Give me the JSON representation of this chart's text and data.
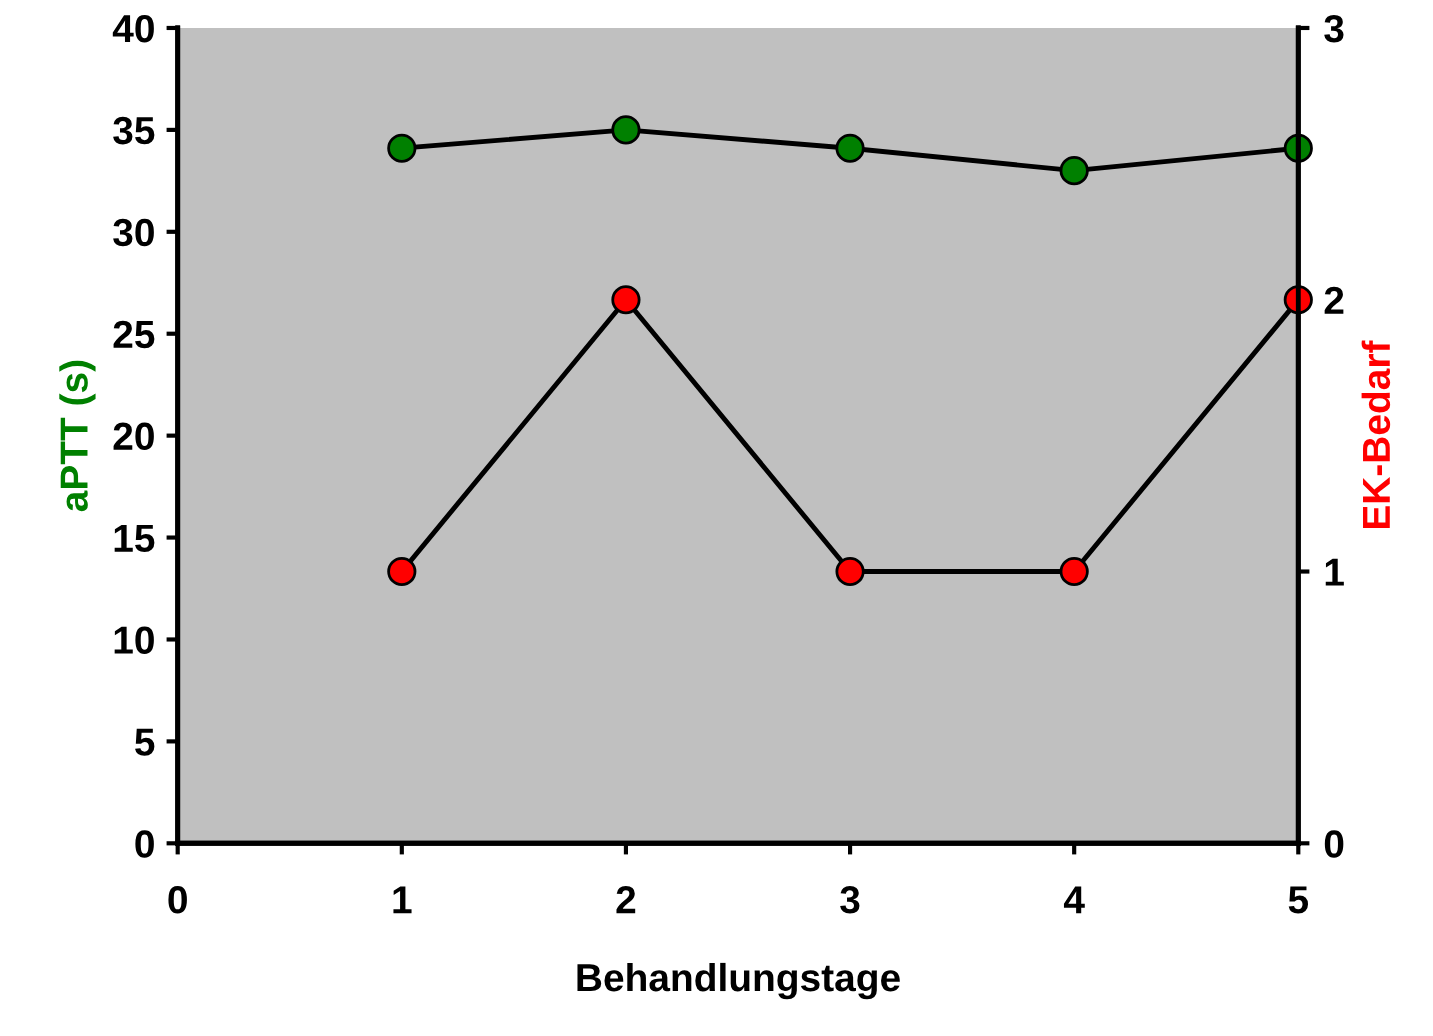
{
  "chart_data": {
    "type": "line",
    "xlabel": "Behandlungstage",
    "ylabel": "aPTT (s)",
    "y2label": "EK-Bedarf",
    "x": [
      1,
      2,
      3,
      4,
      5
    ],
    "series": [
      {
        "color": "#008000",
        "values": [
          34.1,
          35.0,
          34.1,
          33.0,
          34.1
        ]
      },
      {
        "color": "#ff0000",
        "values": [
          1,
          2,
          1,
          1,
          2
        ],
        "axis": "y2"
      }
    ],
    "xlim": [
      0,
      5
    ],
    "xticks": [
      0,
      1,
      2,
      3,
      4,
      5
    ],
    "ylim": [
      0,
      40
    ],
    "yticks": [
      0,
      5,
      10,
      15,
      20,
      25,
      30,
      35,
      40
    ],
    "y2lim": [
      0,
      3
    ],
    "y2ticks": [
      0,
      1,
      2,
      3
    ],
    "marker": "circle",
    "line_style": "solid",
    "grid": false,
    "legend": false
  }
}
